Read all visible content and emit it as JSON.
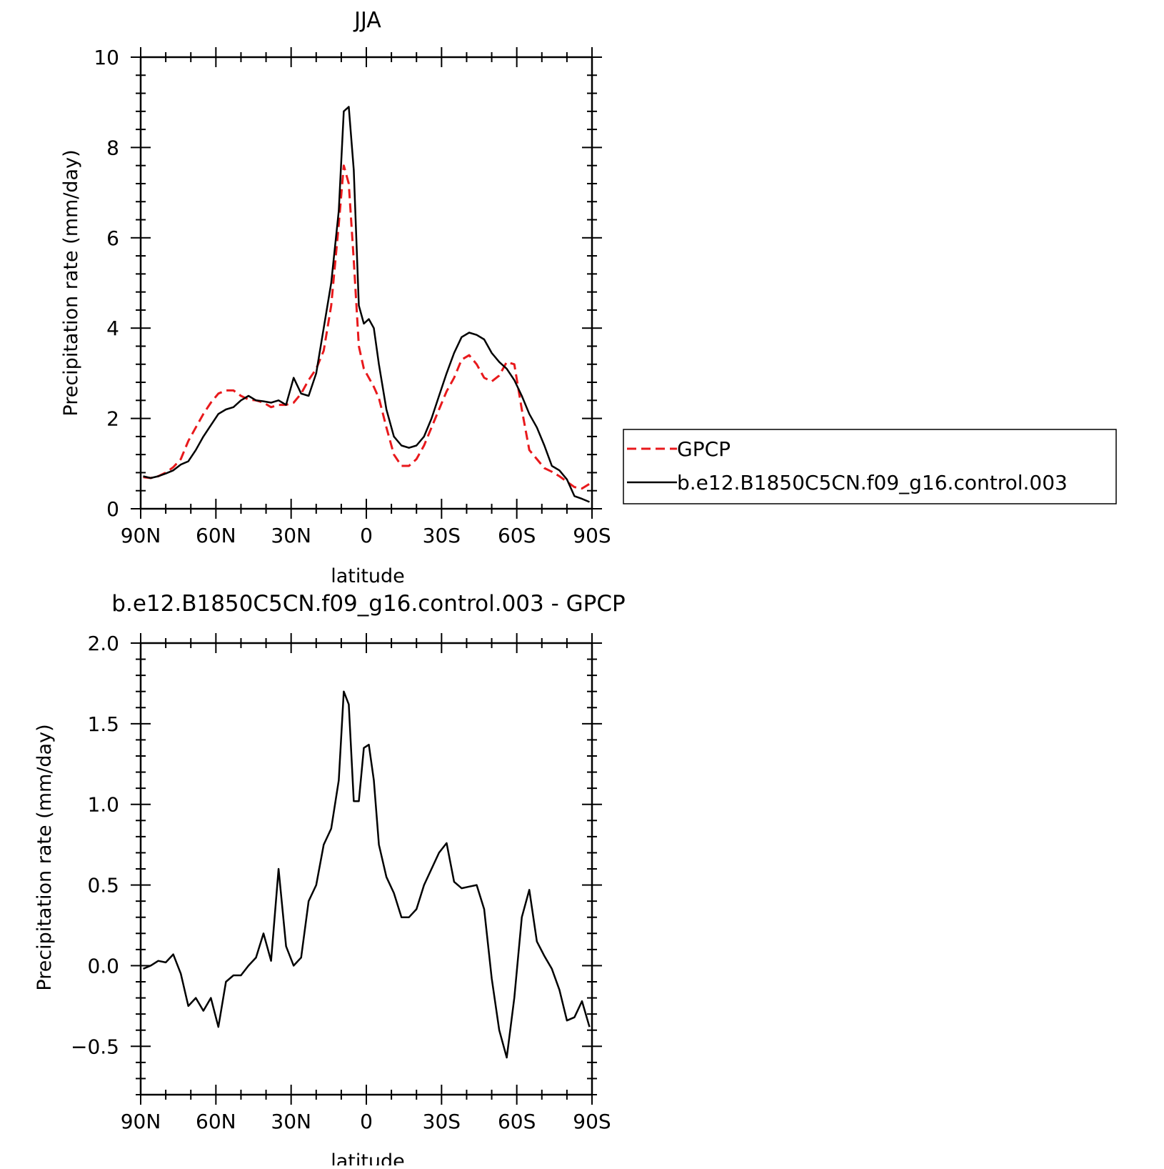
{
  "chart_data": [
    {
      "type": "line",
      "title": "JJA",
      "xlabel": "latitude",
      "ylabel": "Precipitation rate (mm/day)",
      "xlim": [
        90,
        -90
      ],
      "ylim": [
        0,
        10
      ],
      "x_ticks": [
        90,
        60,
        30,
        0,
        -30,
        -60,
        -90
      ],
      "x_tick_labels": [
        "90N",
        "60N",
        "30N",
        "0",
        "30S",
        "60S",
        "90S"
      ],
      "y_ticks": [
        0,
        2,
        4,
        6,
        8,
        10
      ],
      "y_tick_labels": [
        "0",
        "2",
        "4",
        "6",
        "8",
        "10"
      ],
      "legend_position": "right",
      "series": [
        {
          "name": "GPCP",
          "color": "#e8191c",
          "style": "dashed",
          "x": [
            89,
            86,
            83,
            80,
            77,
            74,
            71,
            68,
            65,
            62,
            59,
            56,
            53,
            50,
            47,
            44,
            41,
            38,
            35,
            32,
            29,
            26,
            23,
            20,
            17,
            14,
            11,
            9,
            7,
            5,
            3,
            1,
            -1,
            -3,
            -5,
            -8,
            -11,
            -14,
            -17,
            -20,
            -23,
            -26,
            -29,
            -32,
            -35,
            -38,
            -41,
            -44,
            -47,
            -50,
            -53,
            -56,
            -59,
            -62,
            -65,
            -68,
            -71,
            -74,
            -77,
            -80,
            -83,
            -86,
            -89
          ],
          "y": [
            0.7,
            0.68,
            0.72,
            0.8,
            0.92,
            1.1,
            1.5,
            1.8,
            2.1,
            2.35,
            2.55,
            2.62,
            2.62,
            2.5,
            2.42,
            2.4,
            2.35,
            2.25,
            2.3,
            2.3,
            2.35,
            2.55,
            2.85,
            3.1,
            3.5,
            4.5,
            6.3,
            7.6,
            7.2,
            5.5,
            3.6,
            3.1,
            2.9,
            2.7,
            2.45,
            1.8,
            1.2,
            0.95,
            0.95,
            1.1,
            1.4,
            1.8,
            2.2,
            2.6,
            2.9,
            3.3,
            3.4,
            3.2,
            2.9,
            2.82,
            2.95,
            3.25,
            3.2,
            2.2,
            1.3,
            1.1,
            0.9,
            0.82,
            0.72,
            0.6,
            0.48,
            0.45,
            0.55
          ]
        },
        {
          "name": "b.e12.B1850C5CN.f09_g16.control.003",
          "color": "#000000",
          "style": "solid",
          "x": [
            89,
            86,
            83,
            80,
            77,
            74,
            71,
            68,
            65,
            62,
            59,
            56,
            53,
            50,
            47,
            44,
            41,
            38,
            35,
            32,
            29,
            26,
            23,
            20,
            17,
            14,
            11,
            9,
            7,
            5,
            3,
            1,
            -1,
            -3,
            -5,
            -8,
            -11,
            -14,
            -17,
            -20,
            -23,
            -26,
            -29,
            -32,
            -35,
            -38,
            -41,
            -44,
            -47,
            -50,
            -53,
            -56,
            -59,
            -62,
            -65,
            -68,
            -71,
            -74,
            -77,
            -80,
            -83,
            -86,
            -89
          ],
          "y": [
            0.72,
            0.68,
            0.72,
            0.78,
            0.85,
            0.98,
            1.05,
            1.3,
            1.6,
            1.85,
            2.1,
            2.2,
            2.25,
            2.4,
            2.5,
            2.4,
            2.38,
            2.35,
            2.4,
            2.3,
            2.9,
            2.55,
            2.5,
            3.0,
            4.0,
            5.0,
            6.6,
            8.8,
            8.9,
            7.5,
            4.5,
            4.1,
            4.2,
            4.0,
            3.2,
            2.2,
            1.6,
            1.4,
            1.35,
            1.4,
            1.6,
            2.0,
            2.5,
            3.0,
            3.45,
            3.8,
            3.9,
            3.85,
            3.75,
            3.45,
            3.25,
            3.1,
            2.85,
            2.5,
            2.1,
            1.8,
            1.4,
            0.95,
            0.85,
            0.65,
            0.28,
            0.22,
            0.15
          ]
        }
      ]
    },
    {
      "type": "line",
      "title": "b.e12.B1850C5CN.f09_g16.control.003 - GPCP",
      "xlabel": "latitude",
      "ylabel": "Precipitation rate (mm/day)",
      "xlim": [
        90,
        -90
      ],
      "ylim": [
        -0.8,
        2.0
      ],
      "x_ticks": [
        90,
        60,
        30,
        0,
        -30,
        -60,
        -90
      ],
      "x_tick_labels": [
        "90N",
        "60N",
        "30N",
        "0",
        "30S",
        "60S",
        "90S"
      ],
      "y_ticks": [
        -0.5,
        0.0,
        0.5,
        1.0,
        1.5,
        2.0
      ],
      "y_tick_labels": [
        "−0.5",
        "0.0",
        "0.5",
        "1.0",
        "1.5",
        "2.0"
      ],
      "series": [
        {
          "color": "#000000",
          "style": "solid",
          "x": [
            89,
            86,
            83,
            80,
            77,
            74,
            71,
            68,
            65,
            62,
            59,
            56,
            53,
            50,
            47,
            44,
            41,
            38,
            35,
            32,
            29,
            26,
            23,
            20,
            17,
            14,
            11,
            9,
            7,
            5,
            3,
            1,
            -1,
            -3,
            -5,
            -8,
            -11,
            -14,
            -17,
            -20,
            -23,
            -26,
            -29,
            -32,
            -35,
            -38,
            -41,
            -44,
            -47,
            -50,
            -53,
            -56,
            -59,
            -62,
            -65,
            -68,
            -71,
            -74,
            -77,
            -80,
            -83,
            -86,
            -89
          ],
          "y": [
            -0.02,
            0.0,
            0.03,
            0.02,
            0.07,
            -0.05,
            -0.25,
            -0.2,
            -0.28,
            -0.2,
            -0.38,
            -0.1,
            -0.06,
            -0.06,
            0.0,
            0.05,
            0.2,
            0.03,
            0.6,
            0.12,
            0.0,
            0.05,
            0.4,
            0.5,
            0.75,
            0.85,
            1.15,
            1.7,
            1.62,
            1.02,
            1.02,
            1.35,
            1.37,
            1.15,
            0.75,
            0.55,
            0.45,
            0.3,
            0.3,
            0.35,
            0.5,
            0.6,
            0.7,
            0.76,
            0.52,
            0.48,
            0.49,
            0.5,
            0.35,
            -0.08,
            -0.4,
            -0.57,
            -0.2,
            0.3,
            0.47,
            0.15,
            0.06,
            -0.02,
            -0.15,
            -0.34,
            -0.32,
            -0.22,
            -0.38
          ]
        }
      ]
    }
  ]
}
